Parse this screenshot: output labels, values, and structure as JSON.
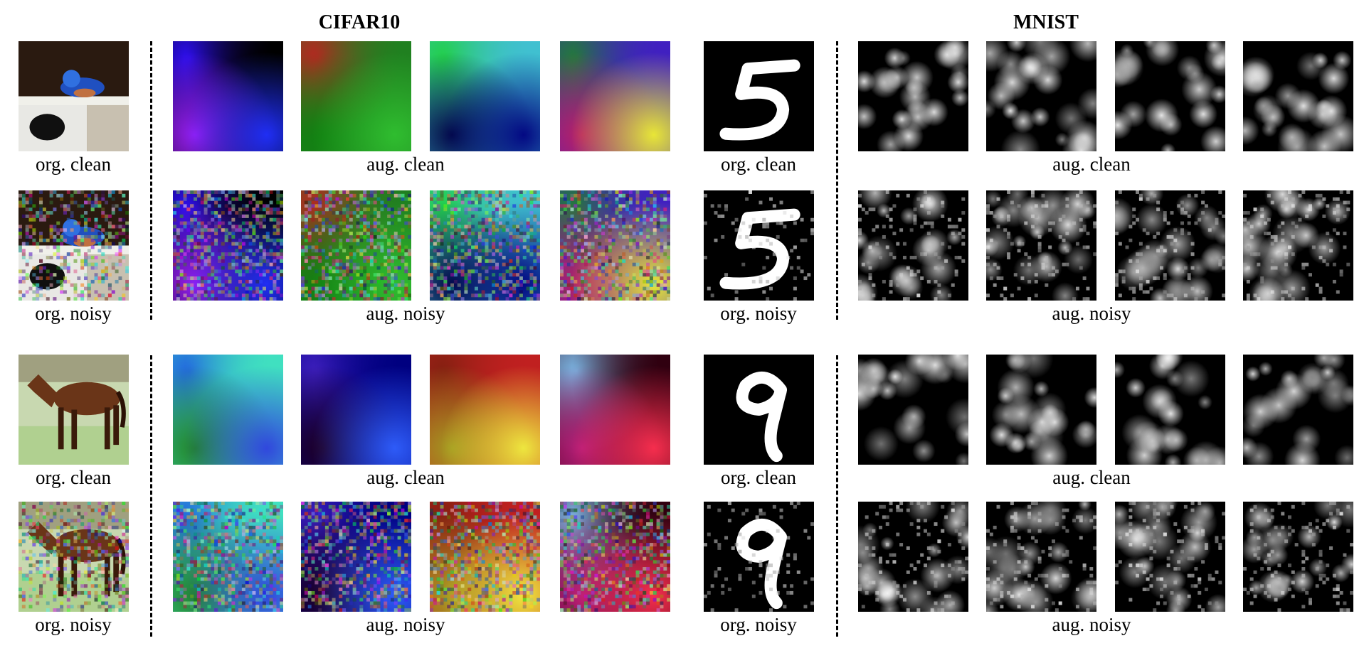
{
  "figure": {
    "titles": {
      "cifar": "CIFAR10",
      "mnist": "MNIST"
    },
    "captions": {
      "org_clean": "org. clean",
      "org_noisy": "org. noisy",
      "aug_clean": "aug. clean",
      "aug_noisy": "aug. noisy"
    },
    "groups": [
      {
        "cifar_original": "bird-photo",
        "mnist_digit": "5",
        "cifar_augmented": [
          [
            "#3010ff",
            "#000000",
            "#a020ff",
            "#2030ff"
          ],
          [
            "#c02020",
            "#208020",
            "#108010",
            "#30c030"
          ],
          [
            "#20d040",
            "#40c0d0",
            "#000040",
            "#000080"
          ],
          [
            "#208030",
            "#4020c0",
            "#c02060",
            "#f0f030"
          ]
        ]
      },
      {
        "cifar_original": "horse-photo",
        "mnist_digit": "9",
        "cifar_augmented": [
          [
            "#2060e0",
            "#40e0c0",
            "#208020",
            "#3040e0"
          ],
          [
            "#4020c0",
            "#000080",
            "#200020",
            "#3060ff"
          ],
          [
            "#802010",
            "#c02020",
            "#a0a020",
            "#f0f040"
          ],
          [
            "#80c0f0",
            "#300010",
            "#c02080",
            "#ff3050"
          ]
        ]
      }
    ]
  }
}
